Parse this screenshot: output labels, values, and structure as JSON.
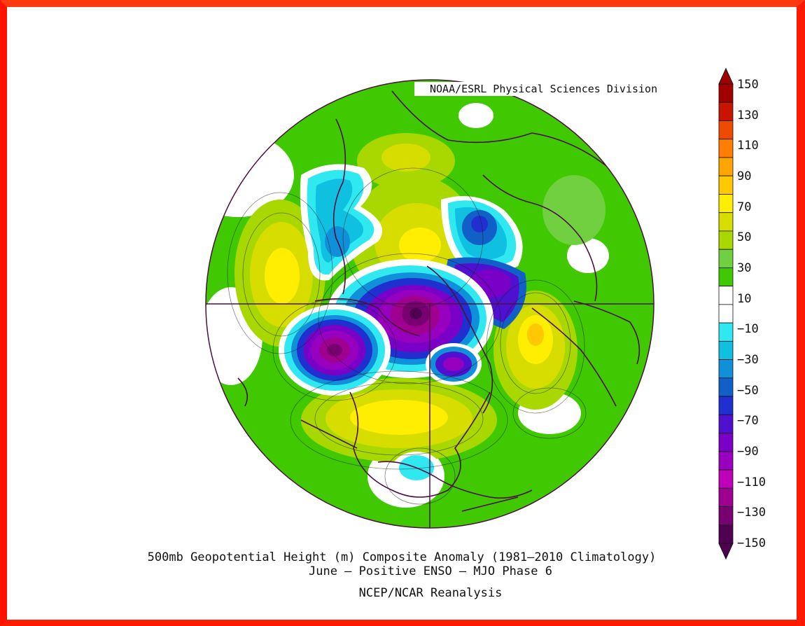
{
  "credit": "NOAA/ESRL Physical Sciences Division",
  "caption": {
    "line1": "500mb Geopotential Height (m) Composite Anomaly (1981–2010 Climatology)",
    "line2": "June – Positive ENSO – MJO Phase 6",
    "line3": "NCEP/NCAR Reanalysis"
  },
  "colorbar": {
    "labels": [
      "150",
      "130",
      "110",
      "90",
      "70",
      "50",
      "30",
      "10",
      "−10",
      "−30",
      "−50",
      "−70",
      "−90",
      "−110",
      "−130",
      "−150"
    ],
    "colors": [
      "#a00000",
      "#c81400",
      "#ee4a00",
      "#ff7e00",
      "#ffa500",
      "#ffc800",
      "#ffee00",
      "#d8dd00",
      "#a8d800",
      "#70d040",
      "#40c800",
      "#ffffff",
      "#ffffff",
      "#30e8f0",
      "#10c0e0",
      "#1090d8",
      "#1060c8",
      "#2030d0",
      "#5010d0",
      "#7a00c8",
      "#9800c0",
      "#c000b8",
      "#a00090",
      "#780070",
      "#500050"
    ],
    "arrow_top_color": "#a00000",
    "arrow_bottom_color": "#500050"
  },
  "map": {
    "projection": "north polar stereographic",
    "background_color": "#40c800",
    "anomaly_centers": [
      {
        "sign": "negative",
        "region": "Arctic / Canada",
        "value": -150
      },
      {
        "sign": "negative",
        "region": "North Pacific",
        "value": -150
      },
      {
        "sign": "negative",
        "region": "Siberia",
        "value": -90
      },
      {
        "sign": "negative",
        "region": "Europe",
        "value": -110
      },
      {
        "sign": "positive",
        "region": "Eastern Canada / Greenland",
        "value": 90
      },
      {
        "sign": "positive",
        "region": "North Atlantic",
        "value": 70
      },
      {
        "sign": "positive",
        "region": "Eastern Siberia",
        "value": 70
      },
      {
        "sign": "positive",
        "region": "Central Asia",
        "value": 50
      },
      {
        "sign": "negative",
        "region": "Western Europe",
        "value": -50
      },
      {
        "sign": "negative",
        "region": "Central America",
        "value": -30
      }
    ]
  }
}
